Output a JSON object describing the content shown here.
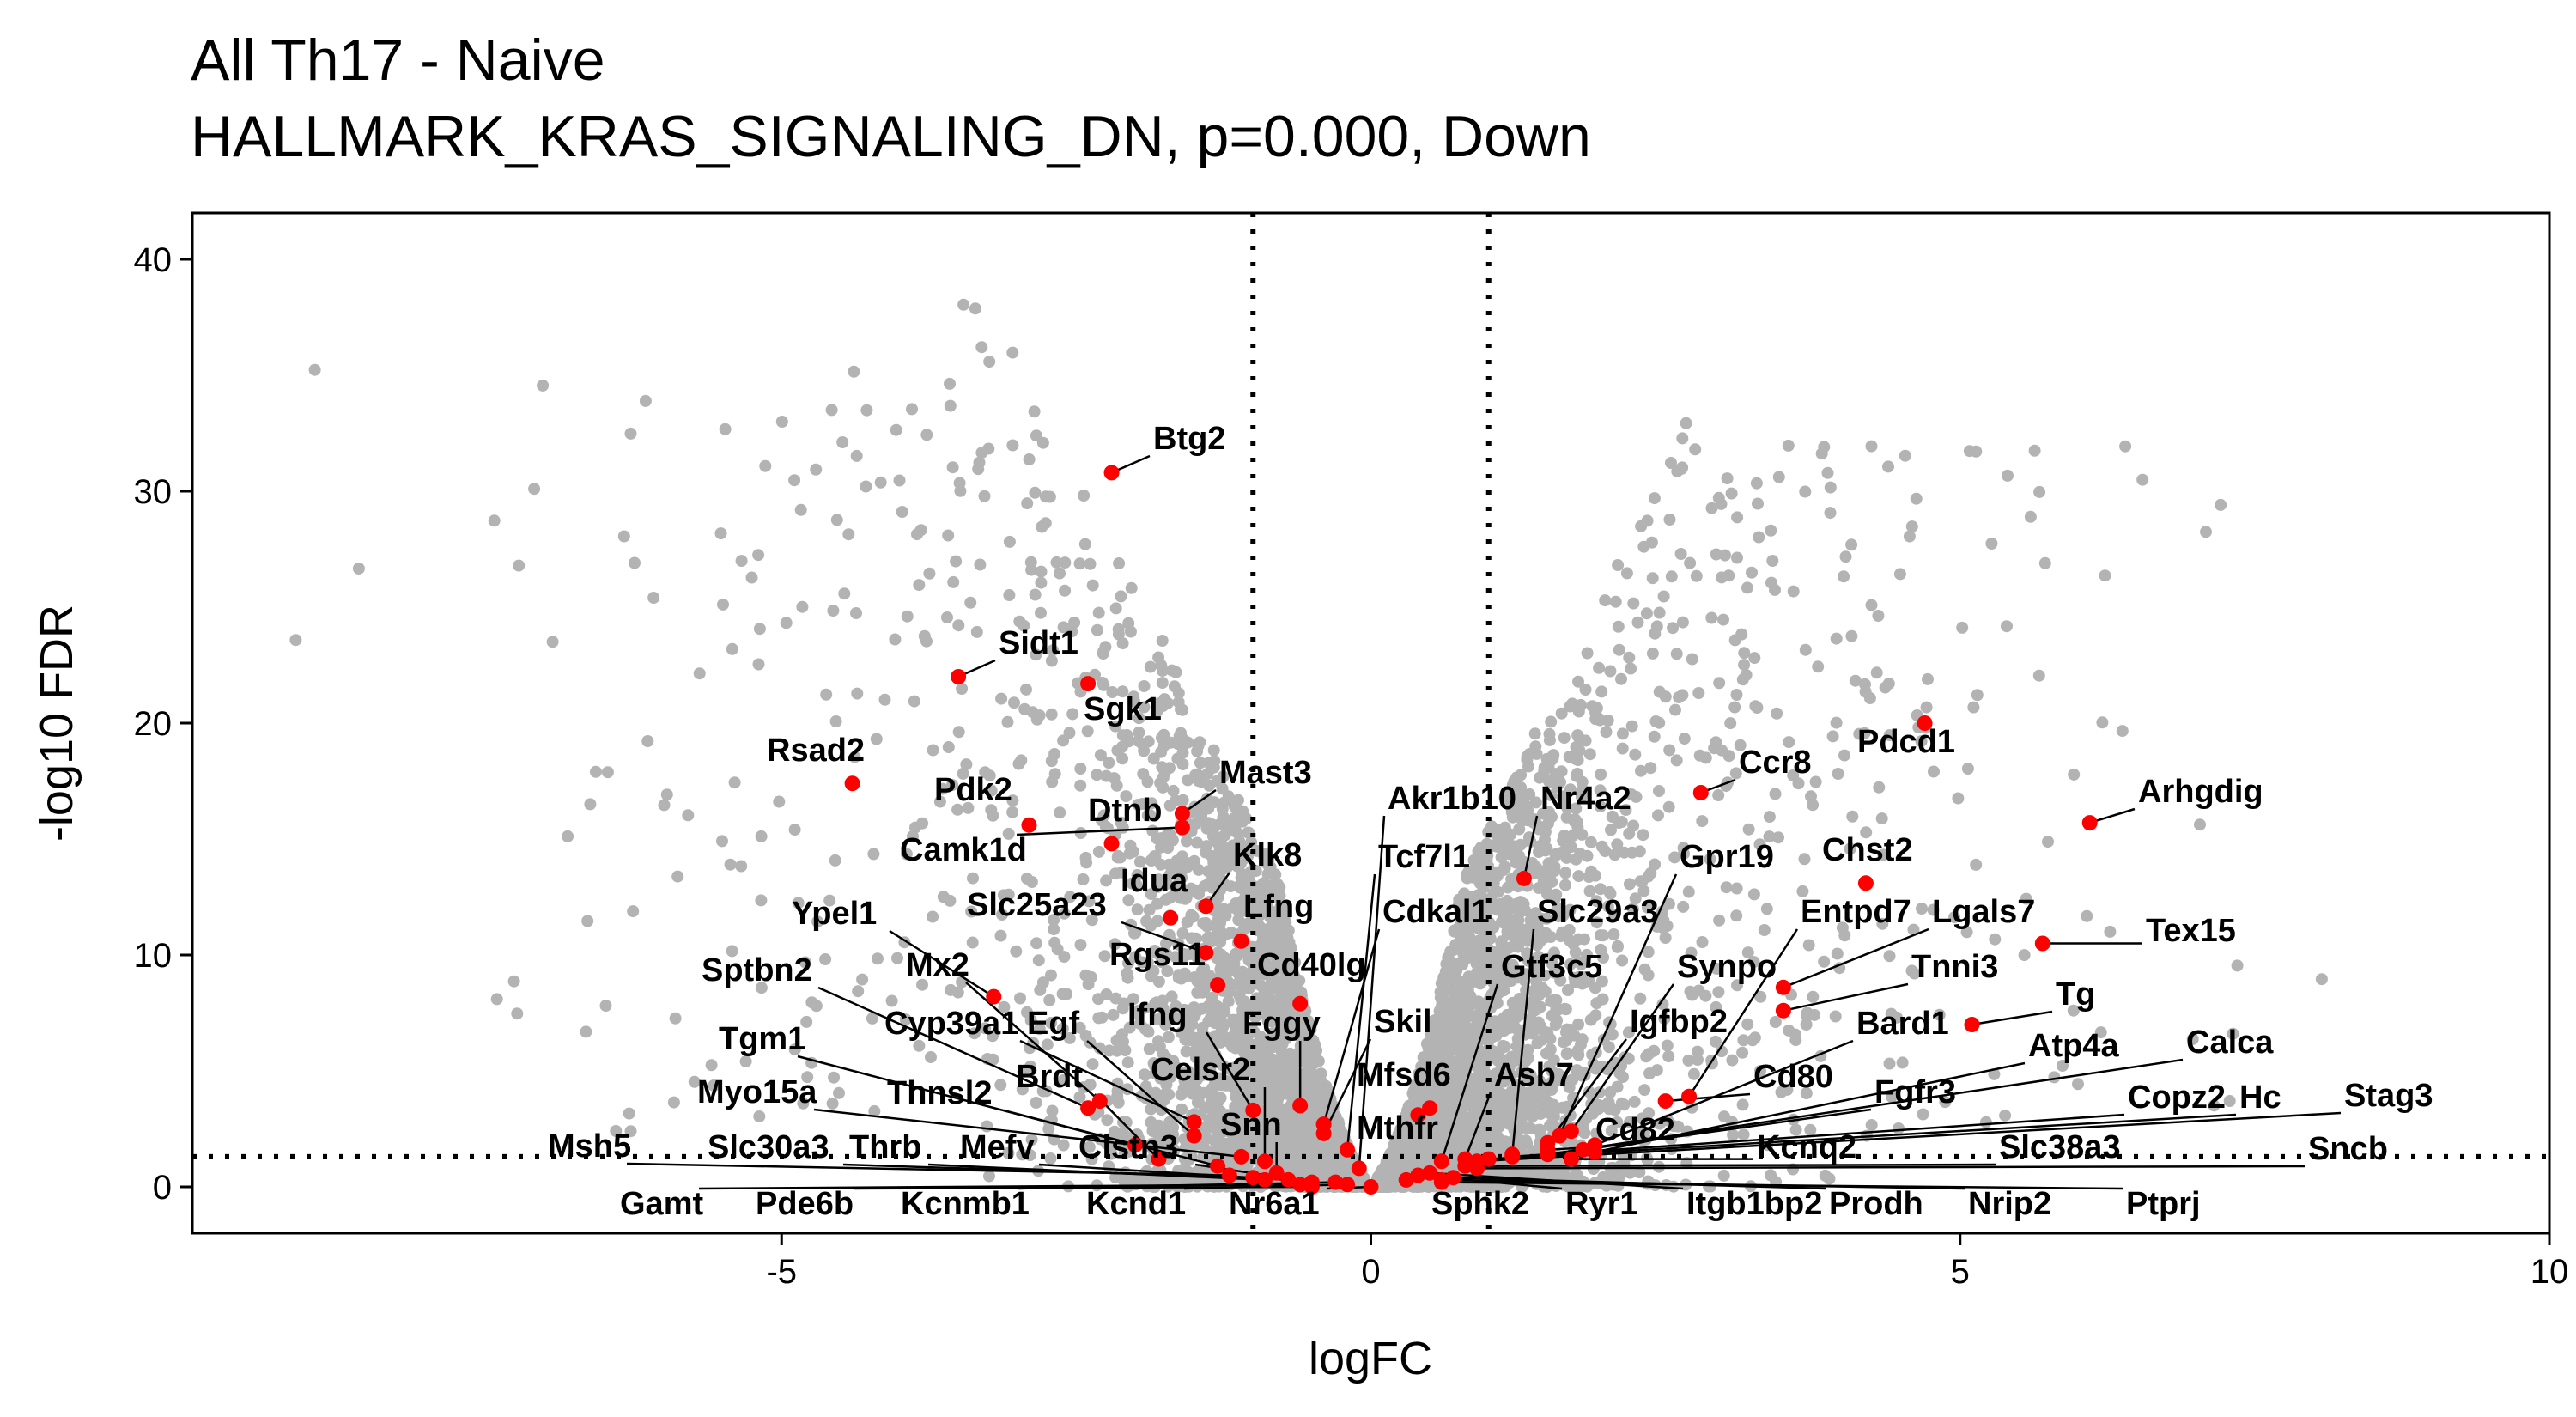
{
  "chart_data": {
    "type": "scatter",
    "title": "All Th17 - Naive",
    "subtitle": "HALLMARK_KRAS_SIGNALING_DN, p=0.000, Down",
    "xlabel": "logFC",
    "ylabel": "-log10 FDR",
    "xlim": [
      -10,
      10
    ],
    "ylim": [
      -2,
      42
    ],
    "x_ticks": [
      -5,
      0,
      5,
      10
    ],
    "y_ticks": [
      0,
      10,
      20,
      30,
      40
    ],
    "grid": false,
    "reference_lines": {
      "vertical_x": [
        -1,
        1
      ],
      "horizontal_y": [
        1.3
      ],
      "style": "dotted"
    },
    "colors": {
      "background_genes": "#b3b3b3",
      "highlighted_genes": "#ff0000",
      "axis": "#000000",
      "reference_line": "#000000"
    },
    "background_point_count": 6000,
    "highlighted_genes": [
      {
        "gene": "Btg2",
        "x": -2.2,
        "y": 30.8
      },
      {
        "gene": "Sidt1",
        "x": -3.5,
        "y": 22.0
      },
      {
        "gene": "Sgk1",
        "x": -2.4,
        "y": 21.7
      },
      {
        "gene": "Rsad2",
        "x": -4.4,
        "y": 17.4
      },
      {
        "gene": "Pdk2",
        "x": -2.9,
        "y": 15.6
      },
      {
        "gene": "Dtnb",
        "x": -2.2,
        "y": 14.8
      },
      {
        "gene": "Mast3",
        "x": -1.6,
        "y": 16.1
      },
      {
        "gene": "Camk1d",
        "x": -1.6,
        "y": 15.5
      },
      {
        "gene": "Idua",
        "x": -1.7,
        "y": 11.6
      },
      {
        "gene": "Klk8",
        "x": -1.4,
        "y": 12.1
      },
      {
        "gene": "Slc25a23",
        "x": -1.4,
        "y": 10.1
      },
      {
        "gene": "Lfng",
        "x": -1.1,
        "y": 10.6
      },
      {
        "gene": "Rgs11",
        "x": -1.3,
        "y": 8.7
      },
      {
        "gene": "Cd40lg",
        "x": -0.6,
        "y": 7.9
      },
      {
        "gene": "Ypel1",
        "x": -3.2,
        "y": 8.2
      },
      {
        "gene": "Mx2",
        "x": -2.3,
        "y": 3.7
      },
      {
        "gene": "Sptbn2",
        "x": -2.4,
        "y": 3.4
      },
      {
        "gene": "Cyp39a1",
        "x": -1.5,
        "y": 2.8
      },
      {
        "gene": "Egf",
        "x": -1.5,
        "y": 2.2
      },
      {
        "gene": "Ifng",
        "x": -1.0,
        "y": 3.3
      },
      {
        "gene": "Fggy",
        "x": -0.6,
        "y": 3.5
      },
      {
        "gene": "Tgm1",
        "x": -2.0,
        "y": 1.8
      },
      {
        "gene": "Brdt",
        "x": -1.8,
        "y": 1.2
      },
      {
        "gene": "Celsr2",
        "x": -0.9,
        "y": 1.1
      },
      {
        "gene": "Myo15a",
        "x": -1.1,
        "y": 1.3
      },
      {
        "gene": "Thnsl2",
        "x": -1.3,
        "y": 0.9
      },
      {
        "gene": "Snn",
        "x": -0.8,
        "y": 0.6
      },
      {
        "gene": "Msh5",
        "x": -1.2,
        "y": 0.5
      },
      {
        "gene": "Slc30a3",
        "x": -1.0,
        "y": 0.4
      },
      {
        "gene": "Thrb",
        "x": -0.9,
        "y": 0.3
      },
      {
        "gene": "Mefv",
        "x": -0.7,
        "y": 0.3
      },
      {
        "gene": "Clstn3",
        "x": -0.5,
        "y": 0.2
      },
      {
        "gene": "Gamt",
        "x": -0.6,
        "y": 0.1
      },
      {
        "gene": "Pde6b",
        "x": -0.5,
        "y": 0.0
      },
      {
        "gene": "Kcnmb1",
        "x": -0.3,
        "y": 0.2
      },
      {
        "gene": "Kcnd1",
        "x": -0.2,
        "y": 0.1
      },
      {
        "gene": "Nr6a1",
        "x": 0.0,
        "y": 0.0
      },
      {
        "gene": "Akr1b10",
        "x": -0.1,
        "y": 0.8
      },
      {
        "gene": "Tcf7l1",
        "x": -0.2,
        "y": 1.6
      },
      {
        "gene": "Cdkal1",
        "x": -0.4,
        "y": 2.7
      },
      {
        "gene": "Skil",
        "x": -0.4,
        "y": 2.3
      },
      {
        "gene": "Mfsd6",
        "x": 0.4,
        "y": 3.1
      },
      {
        "gene": "Mthfr",
        "x": 0.5,
        "y": 3.4
      },
      {
        "gene": "Nr4a2",
        "x": 1.3,
        "y": 13.3
      },
      {
        "gene": "Slc29a3",
        "x": 1.2,
        "y": 1.4
      },
      {
        "gene": "Gtf3c5",
        "x": 0.6,
        "y": 1.1
      },
      {
        "gene": "Asb7",
        "x": 0.8,
        "y": 1.2
      },
      {
        "gene": "Gpr19",
        "x": 1.6,
        "y": 2.2
      },
      {
        "gene": "Synpo",
        "x": 1.7,
        "y": 2.4
      },
      {
        "gene": "Igfbp2",
        "x": 1.5,
        "y": 1.9
      },
      {
        "gene": "Cd80",
        "x": 2.5,
        "y": 3.7
      },
      {
        "gene": "Cd82",
        "x": 1.5,
        "y": 1.6
      },
      {
        "gene": "Entpd7",
        "x": 2.7,
        "y": 3.9
      },
      {
        "gene": "Ccr8",
        "x": 2.8,
        "y": 17.0
      },
      {
        "gene": "Pdcd1",
        "x": 4.7,
        "y": 20.0
      },
      {
        "gene": "Chst2",
        "x": 4.2,
        "y": 13.1
      },
      {
        "gene": "Lgals7",
        "x": 3.5,
        "y": 8.6
      },
      {
        "gene": "Tnni3",
        "x": 3.5,
        "y": 7.6
      },
      {
        "gene": "Bard1",
        "x": 1.9,
        "y": 1.8
      },
      {
        "gene": "Fgfr3",
        "x": 1.8,
        "y": 1.6
      },
      {
        "gene": "Kcnq2",
        "x": 1.7,
        "y": 1.2
      },
      {
        "gene": "Arhgdig",
        "x": 6.1,
        "y": 15.7
      },
      {
        "gene": "Tex15",
        "x": 5.7,
        "y": 10.5
      },
      {
        "gene": "Tg",
        "x": 5.1,
        "y": 7.0
      },
      {
        "gene": "Atp4a",
        "x": 1.9,
        "y": 1.5
      },
      {
        "gene": "Calca",
        "x": 1.5,
        "y": 1.4
      },
      {
        "gene": "Copz2",
        "x": 1.2,
        "y": 1.3
      },
      {
        "gene": "Hc",
        "x": 1.0,
        "y": 1.2
      },
      {
        "gene": "Stag3",
        "x": 0.9,
        "y": 1.1
      },
      {
        "gene": "Slc38a3",
        "x": 0.8,
        "y": 0.9
      },
      {
        "gene": "Sncb",
        "x": 0.9,
        "y": 0.8
      },
      {
        "gene": "Sphk2",
        "x": 0.3,
        "y": 0.3
      },
      {
        "gene": "Ryr1",
        "x": 0.4,
        "y": 0.5
      },
      {
        "gene": "Itgb1bp2",
        "x": 0.5,
        "y": 0.6
      },
      {
        "gene": "Prodh",
        "x": 0.7,
        "y": 0.4
      },
      {
        "gene": "Nrip2",
        "x": 0.6,
        "y": 0.3
      },
      {
        "gene": "Ptprj",
        "x": 0.6,
        "y": 0.2
      }
    ]
  }
}
